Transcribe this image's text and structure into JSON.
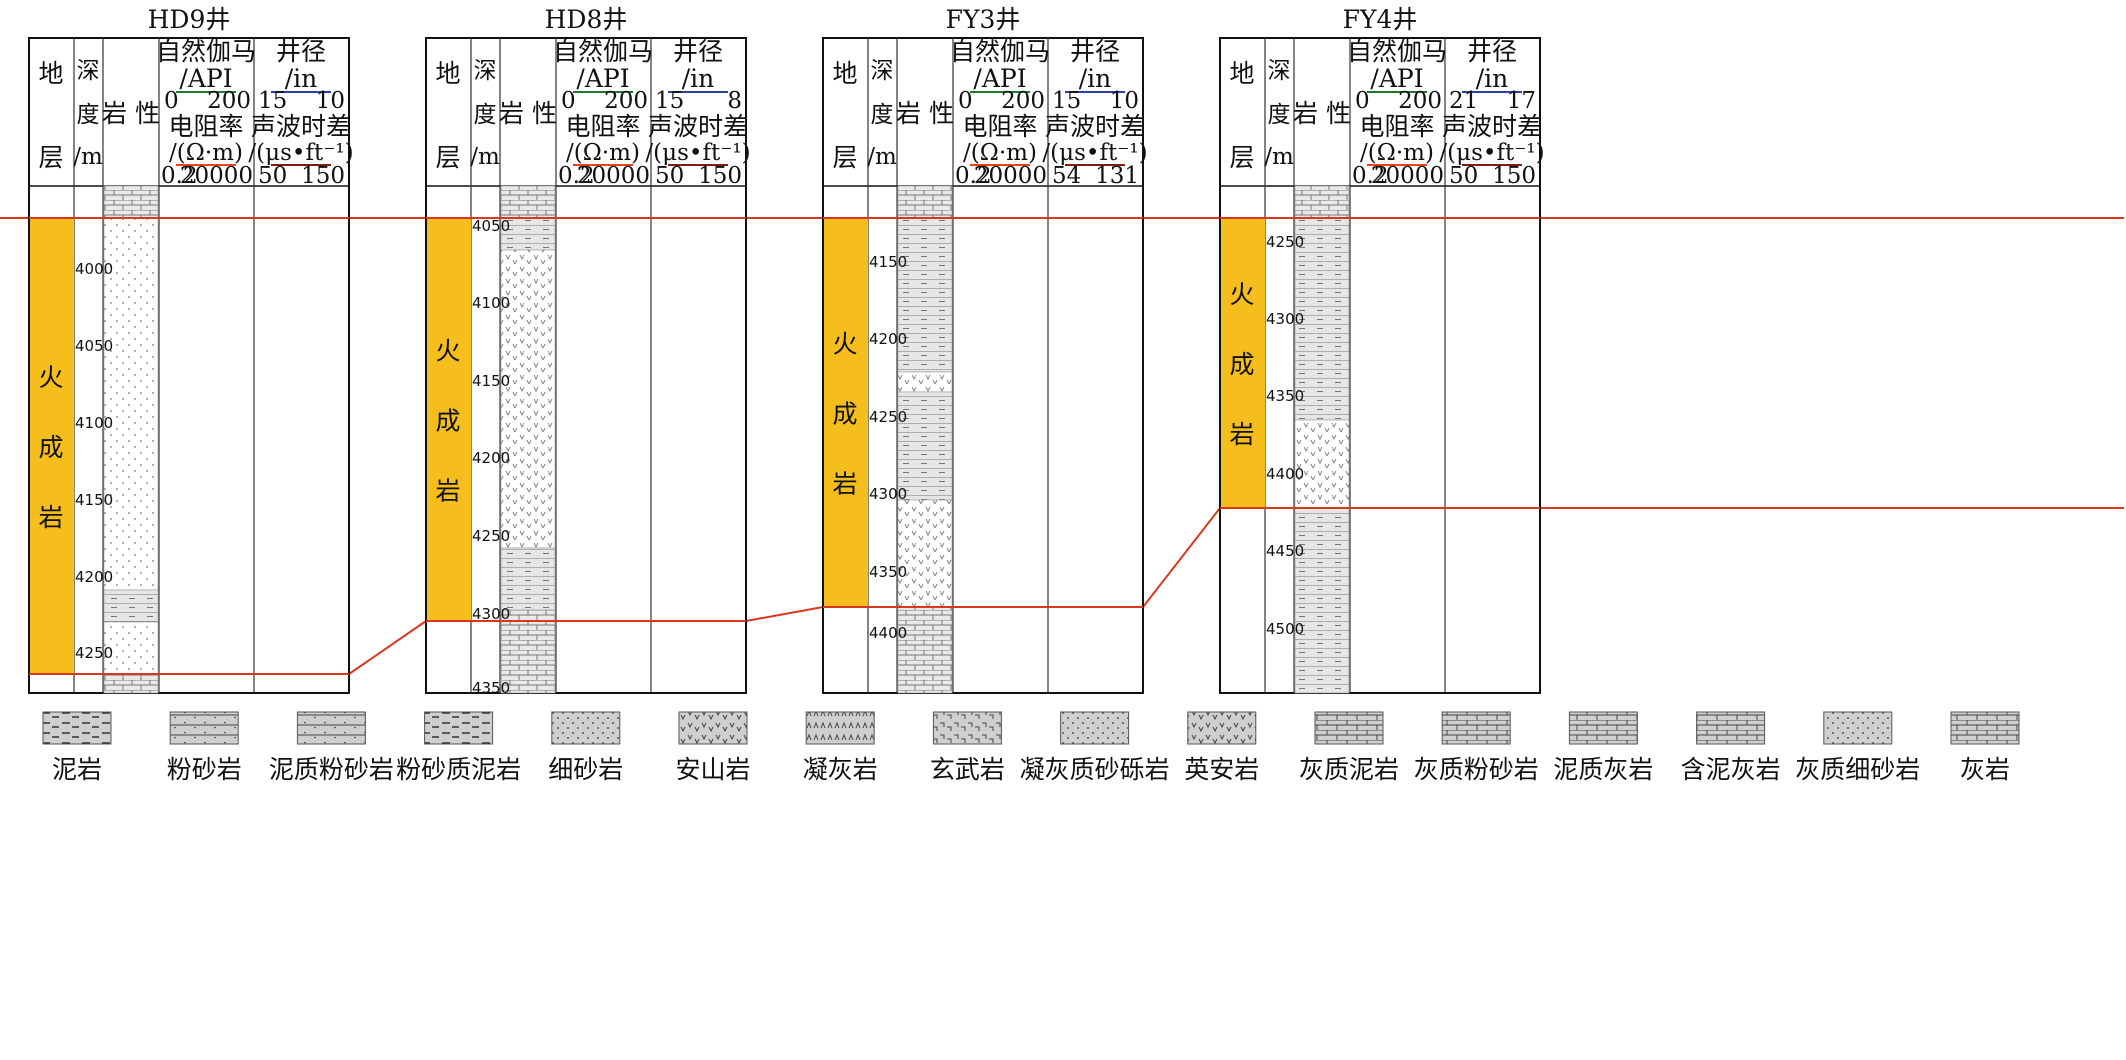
{
  "columns": {
    "formation": [
      "地",
      "层"
    ],
    "depth": [
      "深",
      "度",
      "/m"
    ],
    "lithology": "岩 性",
    "gr_label": "自然伽马",
    "gr_unit": "/API",
    "res_label": "电阻率",
    "res_unit": "/(Ω·m)",
    "cal_label": "井径",
    "cal_unit": "/in",
    "ac_label": "声波时差",
    "ac_unit": "/(μs•ft⁻¹)"
  },
  "igneous_label": [
    "火",
    "成",
    "岩"
  ],
  "colors": {
    "gr": "#1f7a2b",
    "res": "#e8441a",
    "cal": "#2b3fa8",
    "ac": "#7a1f12",
    "igneous": "#f5be1d",
    "boundary": "#d9381e"
  },
  "wells": [
    {
      "name": "HD9井",
      "gr": [
        "0",
        "200"
      ],
      "res": [
        "0.2",
        "20000"
      ],
      "cal": [
        "15",
        "10"
      ],
      "ac": [
        "50",
        "150"
      ],
      "depths": [
        "4000",
        "4050",
        "4100",
        "4150",
        "4200",
        "4250"
      ]
    },
    {
      "name": "HD8井",
      "gr": [
        "0",
        "200"
      ],
      "res": [
        "0.2",
        "20000"
      ],
      "cal": [
        "15",
        "8"
      ],
      "ac": [
        "50",
        "150"
      ],
      "depths": [
        "4050",
        "4100",
        "4150",
        "4200",
        "4250",
        "4300",
        "4350"
      ]
    },
    {
      "name": "FY3井",
      "gr": [
        "0",
        "200"
      ],
      "res": [
        "0.2",
        "20000"
      ],
      "cal": [
        "15",
        "10"
      ],
      "ac": [
        "54",
        "131"
      ],
      "depths": [
        "4150",
        "4200",
        "4250",
        "4300",
        "4350",
        "4400"
      ]
    },
    {
      "name": "FY4井",
      "gr": [
        "0",
        "200"
      ],
      "res": [
        "0.2",
        "20000"
      ],
      "cal": [
        "21",
        "17"
      ],
      "ac": [
        "50",
        "150"
      ],
      "depths": [
        "4250",
        "4300",
        "4350",
        "4400",
        "4450",
        "4500"
      ]
    }
  ],
  "legend": [
    "泥岩",
    "粉砂岩",
    "泥质粉砂岩",
    "粉砂质泥岩",
    "细砂岩",
    "安山岩",
    "凝灰岩",
    "玄武岩",
    "凝灰质砂砾岩",
    "英安岩",
    "灰质泥岩",
    "灰质粉砂岩",
    "泥质灰岩",
    "含泥灰岩",
    "灰质细砂岩",
    "灰岩"
  ]
}
